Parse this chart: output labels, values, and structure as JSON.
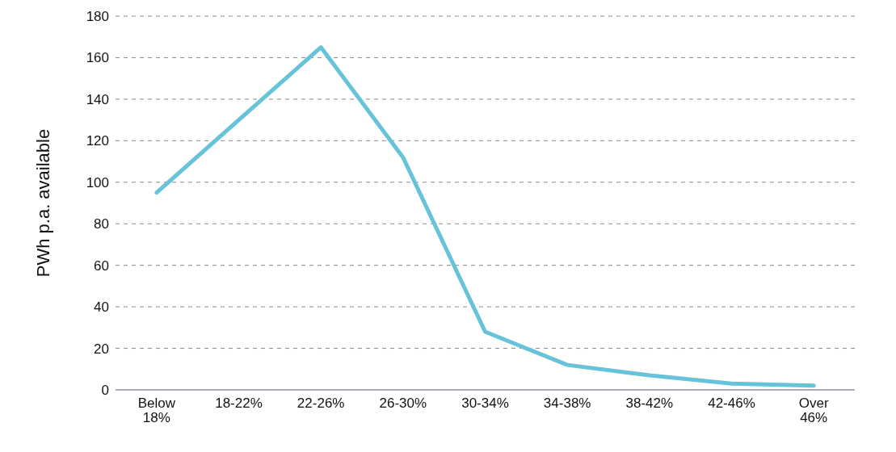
{
  "chart_data": {
    "type": "line",
    "ylabel": "PWh p.a. available",
    "categories": [
      "Below 18%",
      "18-22%",
      "22-26%",
      "26-30%",
      "30-34%",
      "34-38%",
      "38-42%",
      "42-46%",
      "Over 46%"
    ],
    "series": [
      {
        "color": "#66c3d9",
        "values": [
          95,
          130,
          165,
          112,
          28,
          12,
          7,
          3,
          2
        ]
      }
    ],
    "ylim": [
      0,
      180
    ],
    "yticks": [
      0,
      20,
      40,
      60,
      80,
      100,
      120,
      140,
      160,
      180
    ],
    "grid": "y",
    "legend": false,
    "marker": "none",
    "line_style": "solid"
  }
}
